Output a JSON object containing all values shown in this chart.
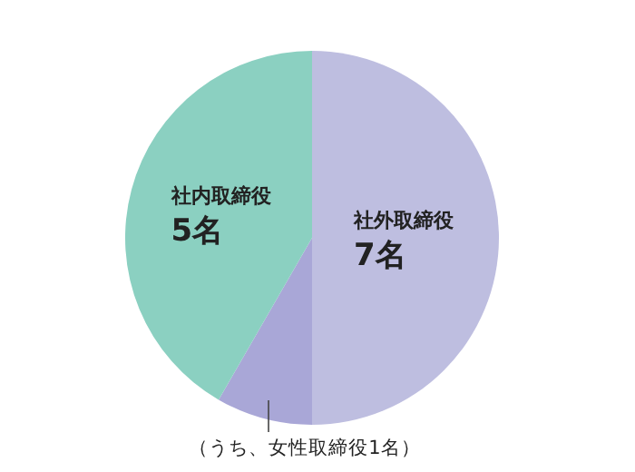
{
  "chart_data": {
    "type": "pie",
    "categories": [
      null,
      "（うち、女性取締役1名）",
      "社内取締役"
    ],
    "values": [
      6,
      1,
      5
    ],
    "colors": [
      "#bebee0",
      "#a9a7d7",
      "#8bd0c1"
    ],
    "value_labels": [
      null,
      null,
      "5名"
    ],
    "annotations": [
      "社外取締役",
      "7名"
    ]
  }
}
